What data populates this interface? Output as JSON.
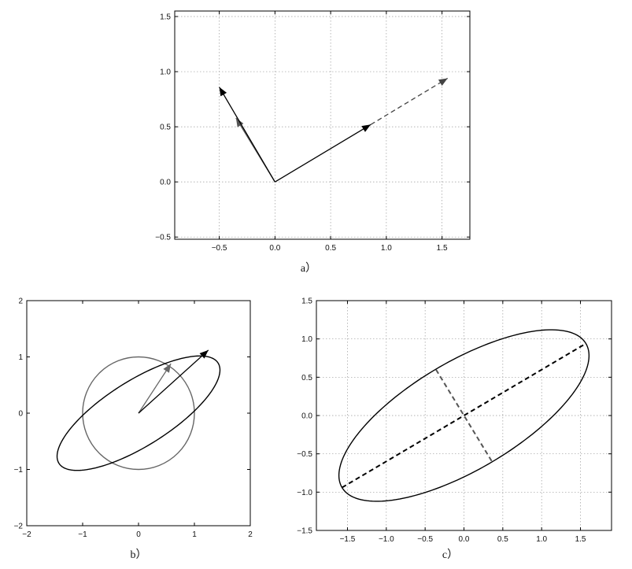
{
  "chart_data": [
    {
      "id": "a",
      "type": "line",
      "caption": "a）",
      "xlim": [
        -0.9,
        1.75
      ],
      "ylim": [
        -0.52,
        1.55
      ],
      "xticks": [
        -0.5,
        0.0,
        0.5,
        1.0,
        1.5
      ],
      "yticks": [
        -0.5,
        0.0,
        0.5,
        1.0,
        1.5
      ],
      "xtick_labels": [
        "−0.5",
        "0.0",
        "0.5",
        "1.0",
        "1.5"
      ],
      "ytick_labels": [
        "−0.5",
        "0.0",
        "0.5",
        "1.0",
        "1.5"
      ],
      "grid": true,
      "arrows": [
        {
          "from": [
            0,
            0
          ],
          "to": [
            -0.35,
            0.58
          ],
          "color": "#555555",
          "style": "solid"
        },
        {
          "from": [
            0,
            0
          ],
          "to": [
            -0.5,
            0.86
          ],
          "color": "#000000",
          "style": "solid"
        },
        {
          "from": [
            0,
            0
          ],
          "to": [
            0.86,
            0.52
          ],
          "color": "#000000",
          "style": "solid"
        },
        {
          "from": [
            0.86,
            0.52
          ],
          "to": [
            1.55,
            0.94
          ],
          "color": "#444444",
          "style": "dashed"
        }
      ]
    },
    {
      "id": "b",
      "type": "line",
      "caption": "b）",
      "xlim": [
        -2,
        2
      ],
      "ylim": [
        -2,
        2
      ],
      "xticks": [
        -2,
        -1,
        0,
        1,
        2
      ],
      "yticks": [
        -2,
        -1,
        0,
        1,
        2
      ],
      "xtick_labels": [
        "−2",
        "−1",
        "0",
        "1",
        "2"
      ],
      "ytick_labels": [
        "−2",
        "−1",
        "0",
        "1",
        "2"
      ],
      "grid": false,
      "circle": {
        "center": [
          0,
          0
        ],
        "radius": 1,
        "color": "#666666"
      },
      "ellipse": {
        "center": [
          0,
          0
        ],
        "semi_major": 1.68,
        "semi_minor": 0.58,
        "angle_deg": 32,
        "color": "#000000"
      },
      "arrows": [
        {
          "from": [
            0,
            0
          ],
          "to": [
            0.58,
            0.88
          ],
          "color": "#666666",
          "style": "solid"
        },
        {
          "from": [
            0,
            0
          ],
          "to": [
            1.25,
            1.12
          ],
          "color": "#000000",
          "style": "solid"
        }
      ]
    },
    {
      "id": "c",
      "type": "line",
      "caption": "c）",
      "xlim": [
        -1.9,
        1.9
      ],
      "ylim": [
        -1.5,
        1.5
      ],
      "xticks": [
        -1.5,
        -1.0,
        -0.5,
        0.0,
        0.5,
        1.0,
        1.5
      ],
      "yticks": [
        -1.5,
        -1.0,
        -0.5,
        0.0,
        0.5,
        1.0,
        1.5
      ],
      "xtick_labels": [
        "−1.5",
        "−1.0",
        "−0.5",
        "0.0",
        "0.5",
        "1.0",
        "1.5"
      ],
      "ytick_labels": [
        "−1.5",
        "−1.0",
        "−0.5",
        "0.0",
        "0.5",
        "1.0",
        "1.5"
      ],
      "grid": true,
      "ellipse": {
        "center": [
          0,
          0
        ],
        "semi_major": 1.83,
        "semi_minor": 0.705,
        "angle_deg": 31,
        "color": "#000000"
      },
      "axes_lines": [
        {
          "from": [
            -1.57,
            -0.94
          ],
          "to": [
            1.57,
            0.94
          ],
          "color": "#000000",
          "style": "dashed"
        },
        {
          "from": [
            -0.36,
            0.6
          ],
          "to": [
            0.36,
            -0.6
          ],
          "color": "#555555",
          "style": "dashed"
        }
      ]
    }
  ]
}
